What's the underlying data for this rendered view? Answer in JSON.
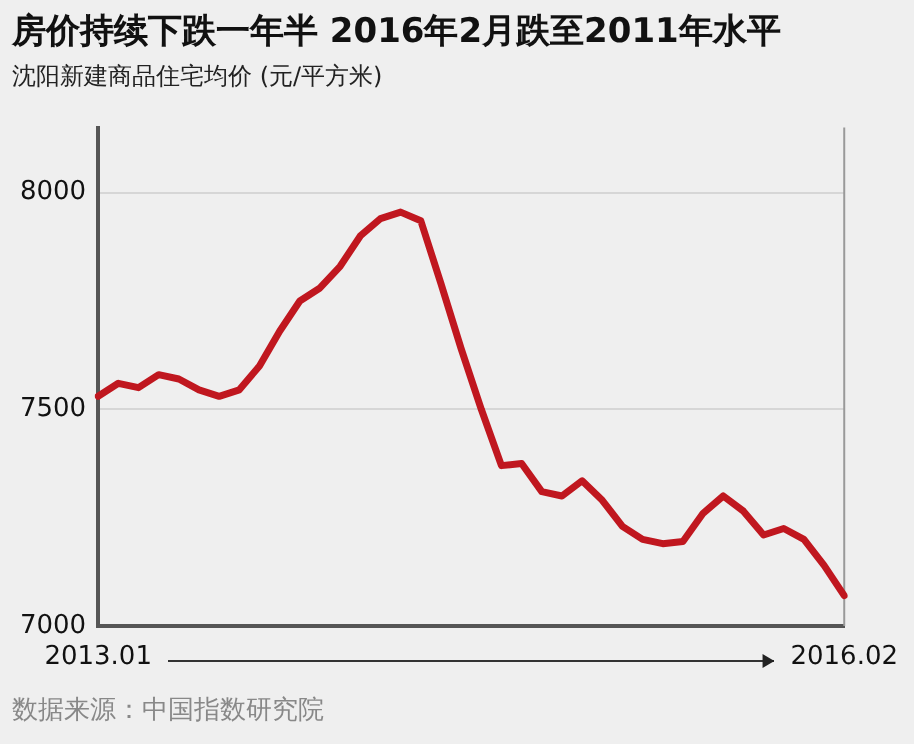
{
  "chart_data": {
    "type": "line",
    "title": "房价持续下跌一年半 2016年2月跌至2011年水平",
    "subtitle": "沈阳新建商品住宅均价 (元/平方米)",
    "categories": [
      "2013.01",
      null,
      null,
      null,
      null,
      null,
      null,
      null,
      null,
      null,
      null,
      null,
      null,
      null,
      null,
      null,
      null,
      null,
      null,
      null,
      null,
      null,
      null,
      null,
      null,
      null,
      null,
      null,
      null,
      null,
      null,
      null,
      null,
      null,
      null,
      null,
      null,
      "2016.02"
    ],
    "series": [
      {
        "color": "#c0171f",
        "values": [
          7530,
          7560,
          7550,
          7580,
          7570,
          7545,
          7530,
          7545,
          7600,
          7680,
          7750,
          7780,
          7830,
          7900,
          7940,
          7955,
          7935,
          7790,
          7640,
          7500,
          7370,
          7375,
          7310,
          7300,
          7335,
          7290,
          7230,
          7200,
          7190,
          7195,
          7260,
          7300,
          7265,
          7210,
          7225,
          7200,
          7140,
          7070
        ]
      }
    ],
    "ylim": [
      7000,
      8150
    ],
    "yticks": [
      7000,
      7500,
      8000
    ],
    "grid": "y",
    "legend": false,
    "marker": "none",
    "line_style": "solid",
    "annotations": [
      "数据来源：中国指数研究院"
    ]
  }
}
